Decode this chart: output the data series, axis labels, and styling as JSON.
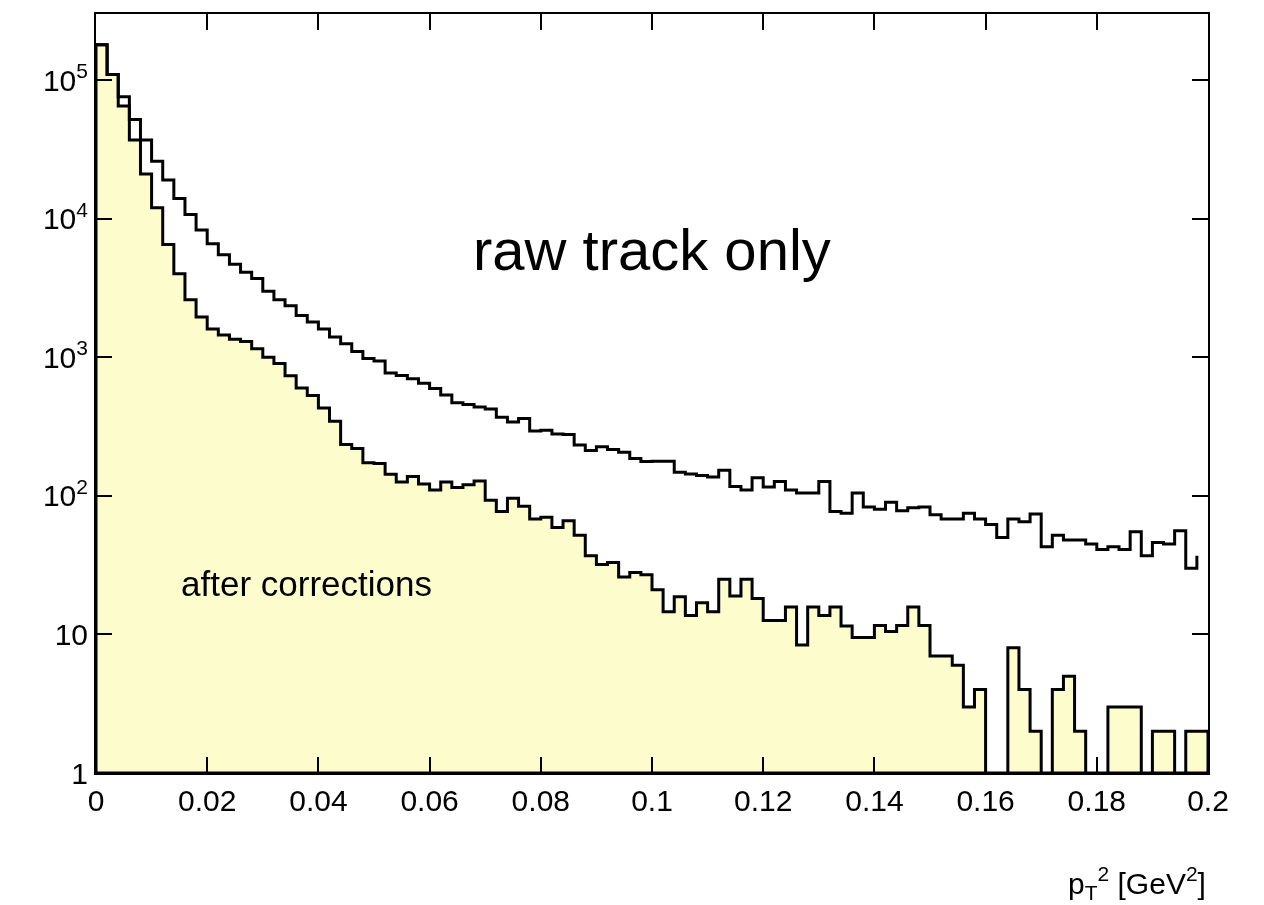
{
  "chart_data": {
    "type": "histogram",
    "bins": [
      0,
      0.002,
      0.004,
      0.006,
      0.008,
      0.01,
      0.012,
      0.014,
      0.016,
      0.018,
      0.02,
      0.022,
      0.024,
      0.026,
      0.028,
      0.03,
      0.032,
      0.034,
      0.036,
      0.038,
      0.04,
      0.042,
      0.044,
      0.046,
      0.048,
      0.05,
      0.052,
      0.054,
      0.056,
      0.058,
      0.06,
      0.062,
      0.064,
      0.066,
      0.068,
      0.07,
      0.072,
      0.074,
      0.076,
      0.078,
      0.08,
      0.082,
      0.084,
      0.086,
      0.088,
      0.09,
      0.092,
      0.094,
      0.096,
      0.098,
      0.1,
      0.102,
      0.104,
      0.106,
      0.108,
      0.11,
      0.112,
      0.114,
      0.116,
      0.118,
      0.12,
      0.122,
      0.124,
      0.126,
      0.128,
      0.13,
      0.132,
      0.134,
      0.136,
      0.138,
      0.14,
      0.142,
      0.144,
      0.146,
      0.148,
      0.15,
      0.152,
      0.154,
      0.156,
      0.158,
      0.16,
      0.162,
      0.164,
      0.166,
      0.168,
      0.17,
      0.172,
      0.174,
      0.176,
      0.178,
      0.18,
      0.182,
      0.184,
      0.186,
      0.188,
      0.19,
      0.192,
      0.194,
      0.196,
      0.198,
      0.2
    ],
    "series": [
      {
        "color": "#fdfccd",
        "values": [
          180000,
          110000,
          65000,
          37000,
          21000,
          12000,
          6500,
          4000,
          2600,
          1950,
          1600,
          1450,
          1350,
          1300,
          1150,
          1000,
          900,
          735,
          600,
          530,
          430,
          345,
          235,
          220,
          173,
          171,
          143,
          126,
          138,
          122,
          110,
          126,
          115,
          120,
          128,
          93,
          77,
          96,
          84,
          68,
          70,
          59,
          66,
          52,
          37,
          32,
          33,
          26,
          28,
          27,
          21,
          14.6,
          18.7,
          13.7,
          16.9,
          14.6,
          25,
          18.9,
          25,
          18.2,
          12.6,
          12.6,
          15.8,
          8.4,
          15.8,
          13.7,
          15.8,
          11.5,
          9.5,
          9.5,
          11.6,
          10.5,
          11.6,
          15.8,
          11.6,
          7,
          7,
          6,
          3,
          4,
          null,
          null,
          8,
          4,
          2,
          null,
          4,
          5,
          2,
          null,
          null,
          3,
          3,
          3,
          null,
          2,
          2,
          null,
          2,
          2
        ]
      },
      {
        "type": "step",
        "color": "#000000",
        "x": [
          0,
          0.002,
          0.004,
          0.006,
          0.008,
          0.01,
          0.012,
          0.014,
          0.016,
          0.018,
          0.02,
          0.022,
          0.024,
          0.026,
          0.028,
          0.03,
          0.032,
          0.034,
          0.036,
          0.038,
          0.04,
          0.042,
          0.044,
          0.046,
          0.048,
          0.05,
          0.052,
          0.054,
          0.056,
          0.058,
          0.06,
          0.062,
          0.064,
          0.066,
          0.068,
          0.07,
          0.072,
          0.074,
          0.076,
          0.078,
          0.08,
          0.082,
          0.084,
          0.086,
          0.088,
          0.09,
          0.092,
          0.094,
          0.096,
          0.098,
          0.1,
          0.102,
          0.104,
          0.106,
          0.108,
          0.11,
          0.112,
          0.114,
          0.116,
          0.118,
          0.12,
          0.122,
          0.124,
          0.126,
          0.128,
          0.13,
          0.132,
          0.134,
          0.136,
          0.138,
          0.14,
          0.142,
          0.144,
          0.146,
          0.148,
          0.15,
          0.152,
          0.154,
          0.156,
          0.158,
          0.16,
          0.162,
          0.164,
          0.166,
          0.168,
          0.17,
          0.172,
          0.174,
          0.176,
          0.178,
          0.18,
          0.182,
          0.184,
          0.186,
          0.188,
          0.19,
          0.192,
          0.194,
          0.196,
          0.198
        ],
        "values": [
          180000,
          110000,
          76000,
          52000,
          37000,
          26000,
          19000,
          14000,
          10700,
          8300,
          6600,
          5500,
          4700,
          4100,
          3700,
          3000,
          2600,
          2350,
          2000,
          1800,
          1600,
          1400,
          1250,
          1100,
          980,
          940,
          770,
          740,
          700,
          650,
          595,
          535,
          470,
          457,
          438,
          423,
          369,
          341,
          362,
          294,
          298,
          280,
          277,
          233,
          212,
          226,
          216,
          206,
          186,
          177,
          178,
          178,
          148,
          144,
          140,
          137,
          153,
          117,
          110,
          135,
          116,
          127,
          110,
          105,
          105,
          127,
          77,
          75,
          105,
          83,
          80,
          90,
          78,
          82,
          83,
          73,
          68,
          68,
          75,
          68,
          62,
          50,
          68,
          65,
          74,
          43,
          52,
          48,
          48,
          45,
          41,
          43,
          41,
          55,
          37,
          46,
          45,
          56,
          30,
          37
        ]
      }
    ],
    "xlabel": "p$_{T}$$^{2}$ [GeV$^{2}$]",
    "annotations": [
      "raw track only",
      "after corrections"
    ],
    "xlim": [
      0,
      0.2
    ],
    "xticks": [
      0,
      0.02,
      0.04,
      0.06,
      0.08,
      0.1,
      0.12,
      0.14,
      0.16,
      0.18,
      0.2
    ],
    "ylim": [
      1,
      300000
    ],
    "yticks": [
      1,
      10,
      {
        "value": 100,
        "label": "10$^{2}$"
      },
      {
        "value": 1000,
        "label": "10$^{3}$"
      },
      {
        "value": 10000,
        "label": "10$^{4}$"
      },
      {
        "value": 100000,
        "label": "10$^{5}$"
      }
    ],
    "log": true
  }
}
